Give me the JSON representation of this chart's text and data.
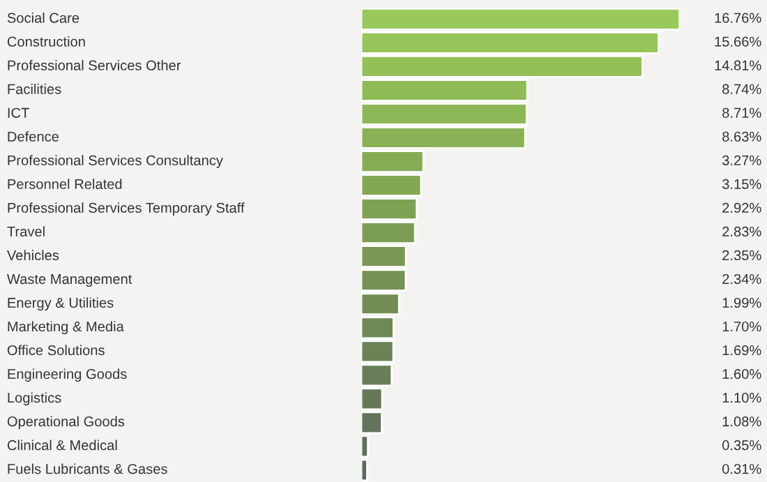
{
  "chart_data": {
    "type": "bar",
    "orientation": "horizontal",
    "categories": [
      "Social Care",
      "Construction",
      "Professional Services Other",
      "Facilities",
      "ICT",
      "Defence",
      "Professional Services Consultancy",
      "Personnel Related",
      "Professional Services Temporary Staff",
      "Travel",
      "Vehicles",
      "Waste Management",
      "Energy & Utilities",
      "Marketing & Media",
      "Office Solutions",
      "Engineering Goods",
      "Logistics",
      "Operational Goods",
      "Clinical & Medical",
      "Fuels Lubricants & Gases"
    ],
    "values": [
      16.76,
      15.66,
      14.81,
      8.74,
      8.71,
      8.63,
      3.27,
      3.15,
      2.92,
      2.83,
      2.35,
      2.34,
      1.99,
      1.7,
      1.69,
      1.6,
      1.1,
      1.08,
      0.35,
      0.31
    ],
    "value_labels": [
      "16.76%",
      "15.66%",
      "14.81%",
      "8.74%",
      "8.71%",
      "8.63%",
      "3.27%",
      "3.15%",
      "2.92%",
      "2.83%",
      "2.35%",
      "2.34%",
      "1.99%",
      "1.70%",
      "1.69%",
      "1.60%",
      "1.10%",
      "1.08%",
      "0.35%",
      "0.31%"
    ],
    "colors": [
      "#98c95a",
      "#96c659",
      "#93c158",
      "#8fbb57",
      "#8cb756",
      "#89b256",
      "#85ac55",
      "#82a755",
      "#7ea254",
      "#7b9d54",
      "#789854",
      "#749254",
      "#718d55",
      "#6e8856",
      "#6b8357",
      "#687e58",
      "#657959",
      "#62745a",
      "#606e5c",
      "#5e695e"
    ]
  }
}
